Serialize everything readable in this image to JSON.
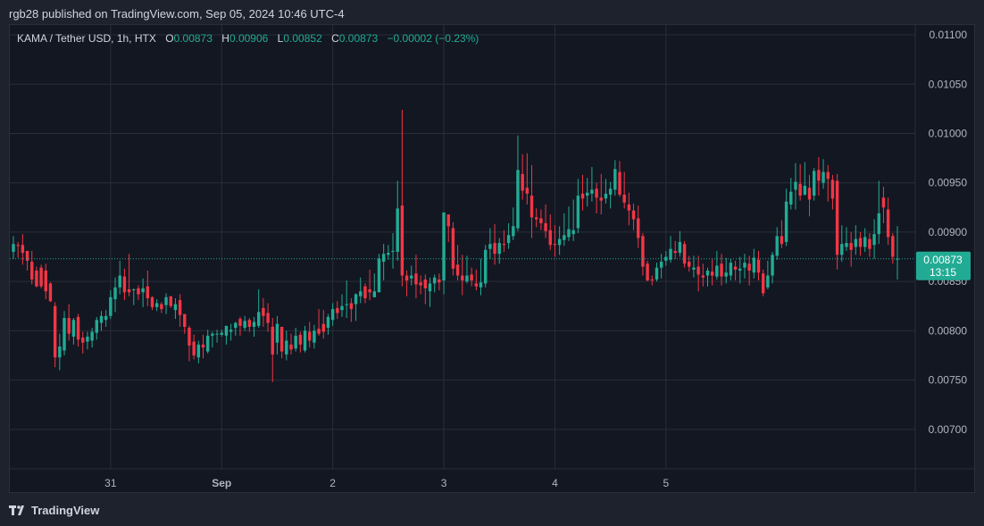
{
  "header": {
    "publish_line": "rgb28 published on TradingView.com, Sep 05, 2024 10:46 UTC-4"
  },
  "legend": {
    "symbol": "KAMA / Tether USD, 1h, HTX",
    "o_key": "O",
    "o_val": "0.00873",
    "h_key": "H",
    "h_val": "0.00906",
    "l_key": "L",
    "l_val": "0.00852",
    "c_key": "C",
    "c_val": "0.00873",
    "change": "−0.00002 (−0.23%)"
  },
  "price_tag": {
    "price": "0.00873",
    "countdown": "13:15"
  },
  "footer": {
    "brand": "TradingView",
    "logo_icon": "tradingview-logo-icon"
  },
  "colors": {
    "up": "#22ab94",
    "down": "#f23645",
    "grid": "#2a2e39",
    "text": "#b2b5be",
    "bg": "#131722"
  },
  "chart_data": {
    "type": "candlestick",
    "interval": "1h",
    "ylim": [
      0.0066,
      0.0111
    ],
    "y_ticks": [
      "0.00700",
      "0.00750",
      "0.00800",
      "0.00850",
      "0.00900",
      "0.00950",
      "0.01000",
      "0.01050",
      "0.01100"
    ],
    "x_ticks": [
      "31",
      "Sep",
      "2",
      "3",
      "4",
      "5"
    ],
    "last_price": 0.00873,
    "candles": [
      [
        0.0088,
        0.00888,
        0.00873,
        0.00896
      ],
      [
        0.00887,
        0.00886,
        0.00874,
        0.0089
      ],
      [
        0.00887,
        0.00879,
        0.00867,
        0.00898
      ],
      [
        0.00881,
        0.00871,
        0.00861,
        0.00881
      ],
      [
        0.0087,
        0.00852,
        0.00847,
        0.00881
      ],
      [
        0.00861,
        0.00845,
        0.00844,
        0.00865
      ],
      [
        0.00864,
        0.00845,
        0.00843,
        0.00867
      ],
      [
        0.00861,
        0.0084,
        0.00832,
        0.00868
      ],
      [
        0.00848,
        0.0083,
        0.00829,
        0.00849
      ],
      [
        0.00825,
        0.00773,
        0.00763,
        0.00829
      ],
      [
        0.00773,
        0.00784,
        0.0076,
        0.00797
      ],
      [
        0.0078,
        0.00813,
        0.00775,
        0.0082
      ],
      [
        0.00813,
        0.00797,
        0.0079,
        0.00827
      ],
      [
        0.00794,
        0.00811,
        0.00786,
        0.00813
      ],
      [
        0.00814,
        0.00791,
        0.00784,
        0.00817
      ],
      [
        0.00793,
        0.00788,
        0.00777,
        0.00799
      ],
      [
        0.00789,
        0.00794,
        0.00781,
        0.00799
      ],
      [
        0.0079,
        0.00799,
        0.00783,
        0.00803
      ],
      [
        0.00798,
        0.00811,
        0.00791,
        0.00814
      ],
      [
        0.00808,
        0.00815,
        0.008,
        0.0082
      ],
      [
        0.00811,
        0.00815,
        0.00804,
        0.00821
      ],
      [
        0.00815,
        0.00834,
        0.00812,
        0.00841
      ],
      [
        0.00832,
        0.00844,
        0.00819,
        0.00854
      ],
      [
        0.00844,
        0.00856,
        0.00837,
        0.00871
      ],
      [
        0.00855,
        0.00839,
        0.00831,
        0.00863
      ],
      [
        0.00842,
        0.00839,
        0.00835,
        0.00878
      ],
      [
        0.00842,
        0.00842,
        0.00826,
        0.00843
      ],
      [
        0.00843,
        0.00837,
        0.00831,
        0.00846
      ],
      [
        0.00839,
        0.00843,
        0.00824,
        0.00853
      ],
      [
        0.00845,
        0.00833,
        0.00825,
        0.00861
      ],
      [
        0.00834,
        0.00824,
        0.00821,
        0.00835
      ],
      [
        0.00824,
        0.00828,
        0.0082,
        0.00832
      ],
      [
        0.00827,
        0.00822,
        0.00818,
        0.00829
      ],
      [
        0.00826,
        0.00834,
        0.00817,
        0.00838
      ],
      [
        0.00835,
        0.00825,
        0.00823,
        0.00835
      ],
      [
        0.00821,
        0.00827,
        0.00812,
        0.00833
      ],
      [
        0.00831,
        0.00816,
        0.00804,
        0.00837
      ],
      [
        0.00817,
        0.00804,
        0.00797,
        0.00817
      ],
      [
        0.00803,
        0.00785,
        0.00769,
        0.00805
      ],
      [
        0.00789,
        0.00775,
        0.00771,
        0.00796
      ],
      [
        0.00773,
        0.00786,
        0.00767,
        0.0079
      ],
      [
        0.00786,
        0.00783,
        0.00772,
        0.00796
      ],
      [
        0.00779,
        0.00795,
        0.00777,
        0.00801
      ],
      [
        0.00795,
        0.00797,
        0.00783,
        0.00799
      ],
      [
        0.00797,
        0.00797,
        0.00788,
        0.00801
      ],
      [
        0.00796,
        0.00798,
        0.00794,
        0.00801
      ],
      [
        0.00795,
        0.00805,
        0.00786,
        0.00805
      ],
      [
        0.00799,
        0.00801,
        0.0079,
        0.00807
      ],
      [
        0.00803,
        0.00808,
        0.00795,
        0.00809
      ],
      [
        0.00812,
        0.00805,
        0.00795,
        0.00814
      ],
      [
        0.00803,
        0.0081,
        0.008,
        0.00815
      ],
      [
        0.00811,
        0.00804,
        0.00799,
        0.00813
      ],
      [
        0.00804,
        0.00809,
        0.00794,
        0.00814
      ],
      [
        0.00805,
        0.00819,
        0.00803,
        0.00842
      ],
      [
        0.00823,
        0.00815,
        0.00804,
        0.00833
      ],
      [
        0.00818,
        0.00808,
        0.00799,
        0.00828
      ],
      [
        0.00804,
        0.00776,
        0.00748,
        0.00813
      ],
      [
        0.00788,
        0.00807,
        0.00776,
        0.00815
      ],
      [
        0.00804,
        0.00779,
        0.00772,
        0.00804
      ],
      [
        0.00776,
        0.0079,
        0.0077,
        0.008
      ],
      [
        0.00786,
        0.00781,
        0.00776,
        0.00797
      ],
      [
        0.00782,
        0.00795,
        0.00779,
        0.00803
      ],
      [
        0.00796,
        0.00786,
        0.00778,
        0.00799
      ],
      [
        0.0078,
        0.008,
        0.00778,
        0.00805
      ],
      [
        0.00799,
        0.0079,
        0.00783,
        0.00809
      ],
      [
        0.00788,
        0.008,
        0.00782,
        0.00806
      ],
      [
        0.00802,
        0.00797,
        0.00795,
        0.00822
      ],
      [
        0.00807,
        0.00799,
        0.00792,
        0.00821
      ],
      [
        0.00803,
        0.00814,
        0.00796,
        0.00817
      ],
      [
        0.00811,
        0.00822,
        0.00805,
        0.00828
      ],
      [
        0.00823,
        0.00818,
        0.00812,
        0.0083
      ],
      [
        0.00821,
        0.00825,
        0.00814,
        0.00837
      ],
      [
        0.00826,
        0.00827,
        0.00813,
        0.00851
      ],
      [
        0.00828,
        0.00822,
        0.00809,
        0.00833
      ],
      [
        0.00827,
        0.00837,
        0.0081,
        0.00838
      ],
      [
        0.00835,
        0.0084,
        0.00828,
        0.00854
      ],
      [
        0.00845,
        0.00833,
        0.00828,
        0.00848
      ],
      [
        0.00842,
        0.00839,
        0.00831,
        0.00862
      ],
      [
        0.00834,
        0.0084,
        0.00834,
        0.00858
      ],
      [
        0.00839,
        0.00873,
        0.00839,
        0.00878
      ],
      [
        0.0087,
        0.00878,
        0.00851,
        0.00888
      ],
      [
        0.00877,
        0.00879,
        0.00872,
        0.00887
      ],
      [
        0.0088,
        0.00881,
        0.00863,
        0.00899
      ],
      [
        0.0088,
        0.00924,
        0.00871,
        0.00952
      ],
      [
        0.00927,
        0.00856,
        0.00845,
        0.01024
      ],
      [
        0.00856,
        0.00851,
        0.00835,
        0.00861
      ],
      [
        0.00853,
        0.00856,
        0.00846,
        0.00866
      ],
      [
        0.00858,
        0.00847,
        0.00833,
        0.00877
      ],
      [
        0.00849,
        0.00846,
        0.00837,
        0.00856
      ],
      [
        0.00852,
        0.00843,
        0.00827,
        0.00857
      ],
      [
        0.0084,
        0.00848,
        0.00824,
        0.00854
      ],
      [
        0.00848,
        0.00854,
        0.00839,
        0.00857
      ],
      [
        0.00852,
        0.00849,
        0.00841,
        0.00858
      ],
      [
        0.00851,
        0.0092,
        0.00837,
        0.00919
      ],
      [
        0.00918,
        0.00906,
        0.0089,
        0.00915
      ],
      [
        0.00904,
        0.00863,
        0.00856,
        0.0091
      ],
      [
        0.00867,
        0.00856,
        0.00851,
        0.00887
      ],
      [
        0.00856,
        0.00851,
        0.00836,
        0.00877
      ],
      [
        0.0085,
        0.00856,
        0.00848,
        0.00876
      ],
      [
        0.00857,
        0.00851,
        0.00845,
        0.00864
      ],
      [
        0.00848,
        0.00845,
        0.00841,
        0.00862
      ],
      [
        0.00844,
        0.00849,
        0.00836,
        0.00873
      ],
      [
        0.00848,
        0.00882,
        0.00844,
        0.00887
      ],
      [
        0.00883,
        0.00888,
        0.00873,
        0.00904
      ],
      [
        0.00889,
        0.00878,
        0.00867,
        0.00908
      ],
      [
        0.00878,
        0.00889,
        0.00868,
        0.00894
      ],
      [
        0.00888,
        0.00887,
        0.0088,
        0.00902
      ],
      [
        0.00889,
        0.00897,
        0.00883,
        0.00909
      ],
      [
        0.00896,
        0.00906,
        0.00892,
        0.00925
      ],
      [
        0.00904,
        0.00963,
        0.00901,
        0.00998
      ],
      [
        0.00959,
        0.00942,
        0.00933,
        0.00979
      ],
      [
        0.00945,
        0.00939,
        0.00928,
        0.0098
      ],
      [
        0.00937,
        0.00915,
        0.00894,
        0.00968
      ],
      [
        0.00915,
        0.00913,
        0.00905,
        0.00924
      ],
      [
        0.00914,
        0.00909,
        0.00902,
        0.00923
      ],
      [
        0.00909,
        0.00901,
        0.00894,
        0.00928
      ],
      [
        0.00902,
        0.00887,
        0.00882,
        0.00918
      ],
      [
        0.00888,
        0.00887,
        0.00875,
        0.00907
      ],
      [
        0.00887,
        0.00893,
        0.00877,
        0.00906
      ],
      [
        0.00892,
        0.00897,
        0.00886,
        0.00919
      ],
      [
        0.00895,
        0.00903,
        0.00891,
        0.00926
      ],
      [
        0.00898,
        0.00902,
        0.00891,
        0.00933
      ],
      [
        0.00904,
        0.00937,
        0.00899,
        0.00954
      ],
      [
        0.00939,
        0.00934,
        0.00922,
        0.00958
      ],
      [
        0.00937,
        0.0094,
        0.00926,
        0.00955
      ],
      [
        0.00939,
        0.00943,
        0.00931,
        0.00966
      ],
      [
        0.00944,
        0.00935,
        0.00919,
        0.0095
      ],
      [
        0.00935,
        0.00932,
        0.00918,
        0.00959
      ],
      [
        0.00934,
        0.00939,
        0.00929,
        0.00954
      ],
      [
        0.00938,
        0.00944,
        0.00924,
        0.00951
      ],
      [
        0.00943,
        0.00964,
        0.00937,
        0.00973
      ],
      [
        0.00961,
        0.00938,
        0.00936,
        0.00972
      ],
      [
        0.00938,
        0.0093,
        0.00924,
        0.00961
      ],
      [
        0.00928,
        0.00922,
        0.00907,
        0.0094
      ],
      [
        0.00922,
        0.00913,
        0.00902,
        0.00929
      ],
      [
        0.00914,
        0.00894,
        0.00884,
        0.00927
      ],
      [
        0.00896,
        0.00865,
        0.00856,
        0.00899
      ],
      [
        0.00868,
        0.00851,
        0.0085,
        0.00871
      ],
      [
        0.00852,
        0.00851,
        0.00846,
        0.00856
      ],
      [
        0.00852,
        0.00864,
        0.0085,
        0.00869
      ],
      [
        0.00864,
        0.0087,
        0.00853,
        0.00878
      ],
      [
        0.00871,
        0.00875,
        0.00866,
        0.00881
      ],
      [
        0.00872,
        0.00883,
        0.00869,
        0.00896
      ],
      [
        0.00881,
        0.00879,
        0.00873,
        0.00891
      ],
      [
        0.00879,
        0.0089,
        0.00875,
        0.00901
      ],
      [
        0.00888,
        0.00868,
        0.00864,
        0.00891
      ],
      [
        0.0087,
        0.00865,
        0.0086,
        0.00876
      ],
      [
        0.00862,
        0.00864,
        0.00854,
        0.00876
      ],
      [
        0.00865,
        0.00857,
        0.0084,
        0.00876
      ],
      [
        0.00856,
        0.00854,
        0.00845,
        0.00868
      ],
      [
        0.00856,
        0.00861,
        0.00845,
        0.00864
      ],
      [
        0.0086,
        0.00856,
        0.00846,
        0.00873
      ],
      [
        0.00855,
        0.00866,
        0.00852,
        0.00881
      ],
      [
        0.00868,
        0.00855,
        0.00846,
        0.00878
      ],
      [
        0.00855,
        0.00859,
        0.00848,
        0.00874
      ],
      [
        0.00856,
        0.00869,
        0.00851,
        0.00873
      ],
      [
        0.00865,
        0.00862,
        0.00851,
        0.00871
      ],
      [
        0.00861,
        0.00863,
        0.00848,
        0.00875
      ],
      [
        0.00864,
        0.00869,
        0.00853,
        0.00878
      ],
      [
        0.00868,
        0.00861,
        0.00846,
        0.00876
      ],
      [
        0.00859,
        0.00874,
        0.00853,
        0.00883
      ],
      [
        0.00872,
        0.00859,
        0.00851,
        0.00881
      ],
      [
        0.00858,
        0.00838,
        0.00835,
        0.00862
      ],
      [
        0.00844,
        0.00856,
        0.00842,
        0.00871
      ],
      [
        0.00856,
        0.00877,
        0.00848,
        0.0088
      ],
      [
        0.00876,
        0.00896,
        0.00872,
        0.00905
      ],
      [
        0.00896,
        0.00888,
        0.00884,
        0.00912
      ],
      [
        0.0089,
        0.00931,
        0.00886,
        0.00944
      ],
      [
        0.00928,
        0.00941,
        0.00923,
        0.00955
      ],
      [
        0.00943,
        0.00951,
        0.00923,
        0.0097
      ],
      [
        0.00949,
        0.00937,
        0.00932,
        0.00969
      ],
      [
        0.00938,
        0.00947,
        0.00937,
        0.00971
      ],
      [
        0.00945,
        0.00933,
        0.00916,
        0.00958
      ],
      [
        0.00937,
        0.00962,
        0.00932,
        0.00965
      ],
      [
        0.00963,
        0.00952,
        0.00937,
        0.00976
      ],
      [
        0.0095,
        0.00961,
        0.00944,
        0.00974
      ],
      [
        0.00961,
        0.00954,
        0.00931,
        0.00968
      ],
      [
        0.00953,
        0.00934,
        0.00923,
        0.00958
      ],
      [
        0.00952,
        0.00877,
        0.00862,
        0.00959
      ],
      [
        0.00877,
        0.00888,
        0.0087,
        0.00907
      ],
      [
        0.00885,
        0.00889,
        0.00881,
        0.00905
      ],
      [
        0.00889,
        0.00882,
        0.00865,
        0.009
      ],
      [
        0.00885,
        0.00893,
        0.00877,
        0.00907
      ],
      [
        0.00894,
        0.00885,
        0.00876,
        0.009
      ],
      [
        0.00885,
        0.00895,
        0.0088,
        0.00904
      ],
      [
        0.00893,
        0.00883,
        0.00875,
        0.00899
      ],
      [
        0.00887,
        0.00898,
        0.00873,
        0.00913
      ],
      [
        0.00898,
        0.00919,
        0.00888,
        0.00952
      ],
      [
        0.00935,
        0.00925,
        0.00909,
        0.00946
      ],
      [
        0.00923,
        0.00895,
        0.00887,
        0.00935
      ],
      [
        0.00896,
        0.00875,
        0.00868,
        0.00899
      ],
      [
        0.00873,
        0.00873,
        0.00852,
        0.00906
      ]
    ]
  }
}
